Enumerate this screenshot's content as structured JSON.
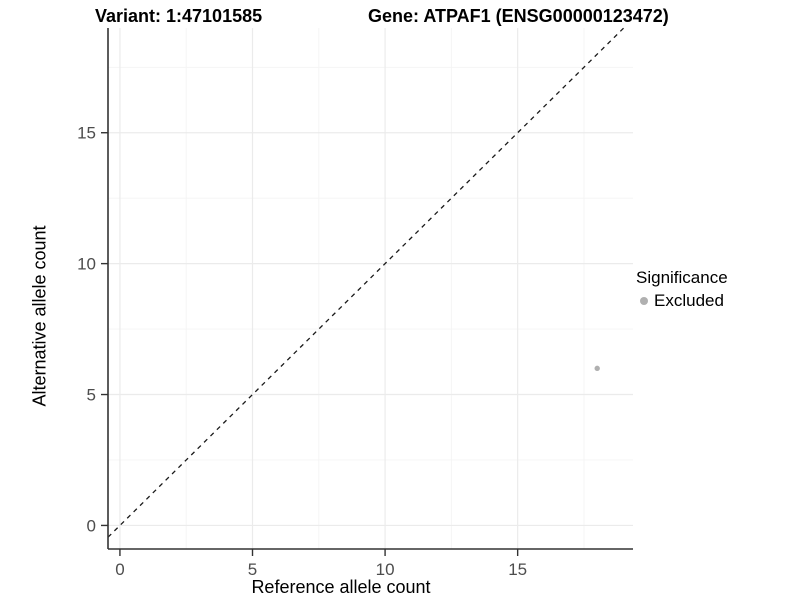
{
  "chart_data": {
    "type": "scatter",
    "title_variant": "Variant: 1:47101585",
    "title_gene": "Gene: ATPAF1 (ENSG00000123472)",
    "xlabel": "Reference allele count",
    "ylabel": "Alternative allele count",
    "x_ticks": [
      0,
      5,
      10,
      15
    ],
    "y_ticks": [
      0,
      5,
      10,
      15
    ],
    "x_minor_ticks": [
      2.5,
      7.5,
      12.5,
      17.5
    ],
    "y_minor_ticks": [
      2.5,
      7.5,
      12.5,
      17.5
    ],
    "xlim": [
      -0.45,
      19.35
    ],
    "ylim": [
      -0.9,
      19.0
    ],
    "grid": true,
    "legend": {
      "title": "Significance",
      "position": "right",
      "items": [
        {
          "label": "Excluded",
          "color": "#b0b0b0"
        }
      ]
    },
    "series": [
      {
        "name": "Excluded",
        "color": "#b0b0b0",
        "points": [
          {
            "x": 18,
            "y": 6
          }
        ]
      }
    ],
    "reference_line": {
      "slope": 1,
      "intercept": 0,
      "style": "dashed",
      "color": "#1a1a1a"
    },
    "colors": {
      "background": "#ffffff",
      "grid_major": "#ebebeb",
      "grid_minor": "#f4f4f4",
      "axis_line": "#333333",
      "tick_label": "#4d4d4d",
      "title_text": "#000000"
    }
  }
}
